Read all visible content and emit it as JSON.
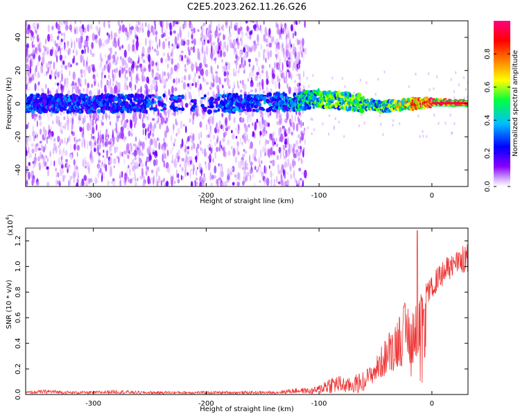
{
  "title": "C2E5.2023.262.11.26.G26",
  "chart_data": [
    {
      "type": "heatmap",
      "name": "spectrogram",
      "xlabel": "Height of straight line (km)",
      "ylabel": "Frequency (Hz)",
      "xlim": [
        -360,
        32
      ],
      "ylim": [
        -50,
        50
      ],
      "xticks": [
        -300,
        -200,
        -100,
        0
      ],
      "xtick_labels": [
        "-300",
        "-200",
        "-100",
        "0"
      ],
      "yticks": [
        -40,
        -20,
        0,
        20,
        40
      ],
      "ytick_labels": [
        "-40",
        "-20",
        "0",
        "20",
        "40"
      ],
      "colorbar": {
        "label": "Normalized spectral amplitude",
        "range": [
          0,
          1
        ],
        "ticks": [
          0.0,
          0.2,
          0.4,
          0.6,
          0.8
        ],
        "tick_labels": [
          "0.0",
          "0.2",
          "0.4",
          "0.6",
          "0.8"
        ],
        "colormap": [
          "#ffffff",
          "#8a00ff",
          "#0000ff",
          "#00bfff",
          "#00ff00",
          "#ffff00",
          "#ff8000",
          "#ff0000",
          "#ff0080"
        ]
      },
      "features": {
        "noise_region_x": [
          -360,
          -120
        ],
        "signal_track": [
          [
            -360,
            0
          ],
          [
            -300,
            0
          ],
          [
            -200,
            0
          ],
          [
            -120,
            1
          ],
          [
            -100,
            3
          ],
          [
            -80,
            2
          ],
          [
            -60,
            0
          ],
          [
            -45,
            -2
          ],
          [
            -30,
            -1
          ],
          [
            -15,
            0
          ],
          [
            0,
            1
          ],
          [
            32,
            0
          ]
        ],
        "signal_strength": [
          [
            -360,
            0.3
          ],
          [
            -200,
            0.3
          ],
          [
            -130,
            0.35
          ],
          [
            -100,
            0.5
          ],
          [
            -70,
            0.55
          ],
          [
            -40,
            0.5
          ],
          [
            -20,
            0.75
          ],
          [
            0,
            0.9
          ],
          [
            32,
            0.95
          ]
        ]
      }
    },
    {
      "type": "line",
      "name": "snr",
      "xlabel": "Height of straight line (km)",
      "ylabel": "SNR (10 * v/v)",
      "scale_label": "(x10",
      "scale_exp": "4",
      "scale_close": ")",
      "xlim": [
        -360,
        32
      ],
      "ylim": [
        0,
        1.3
      ],
      "xticks": [
        -300,
        -200,
        -100,
        0
      ],
      "xtick_labels": [
        "-300",
        "-200",
        "-100",
        "0"
      ],
      "yticks": [
        0.0,
        0.2,
        0.4,
        0.6,
        0.8,
        1.0,
        1.2
      ],
      "ytick_labels": [
        "0.0",
        "0.2",
        "0.4",
        "0.6",
        "0.8",
        "1.0",
        "1.2"
      ],
      "color": "#ee3333",
      "series": [
        {
          "x": [
            -360,
            -340,
            -320,
            -300,
            -280,
            -260,
            -240,
            -220,
            -200,
            -180,
            -160,
            -140,
            -130,
            -120,
            -110,
            -100,
            -95,
            -90,
            -85,
            -80,
            -75,
            -70,
            -65,
            -60,
            -55,
            -50,
            -45,
            -40,
            -35,
            -30,
            -25,
            -20,
            -15,
            -12,
            -10,
            -5,
            0,
            5,
            10,
            15,
            20,
            25,
            30,
            32
          ],
          "y": [
            0.02,
            0.03,
            0.02,
            0.02,
            0.03,
            0.02,
            0.02,
            0.02,
            0.02,
            0.02,
            0.02,
            0.02,
            0.03,
            0.04,
            0.04,
            0.07,
            0.12,
            0.14,
            0.15,
            0.14,
            0.12,
            0.14,
            0.16,
            0.18,
            0.2,
            0.26,
            0.34,
            0.42,
            0.5,
            0.58,
            0.65,
            0.68,
            0.7,
            0.66,
            0.72,
            0.82,
            0.88,
            0.95,
            1.0,
            1.04,
            1.07,
            1.1,
            1.12,
            1.12
          ]
        }
      ],
      "spike": {
        "x": -13,
        "y": 1.28
      }
    }
  ]
}
